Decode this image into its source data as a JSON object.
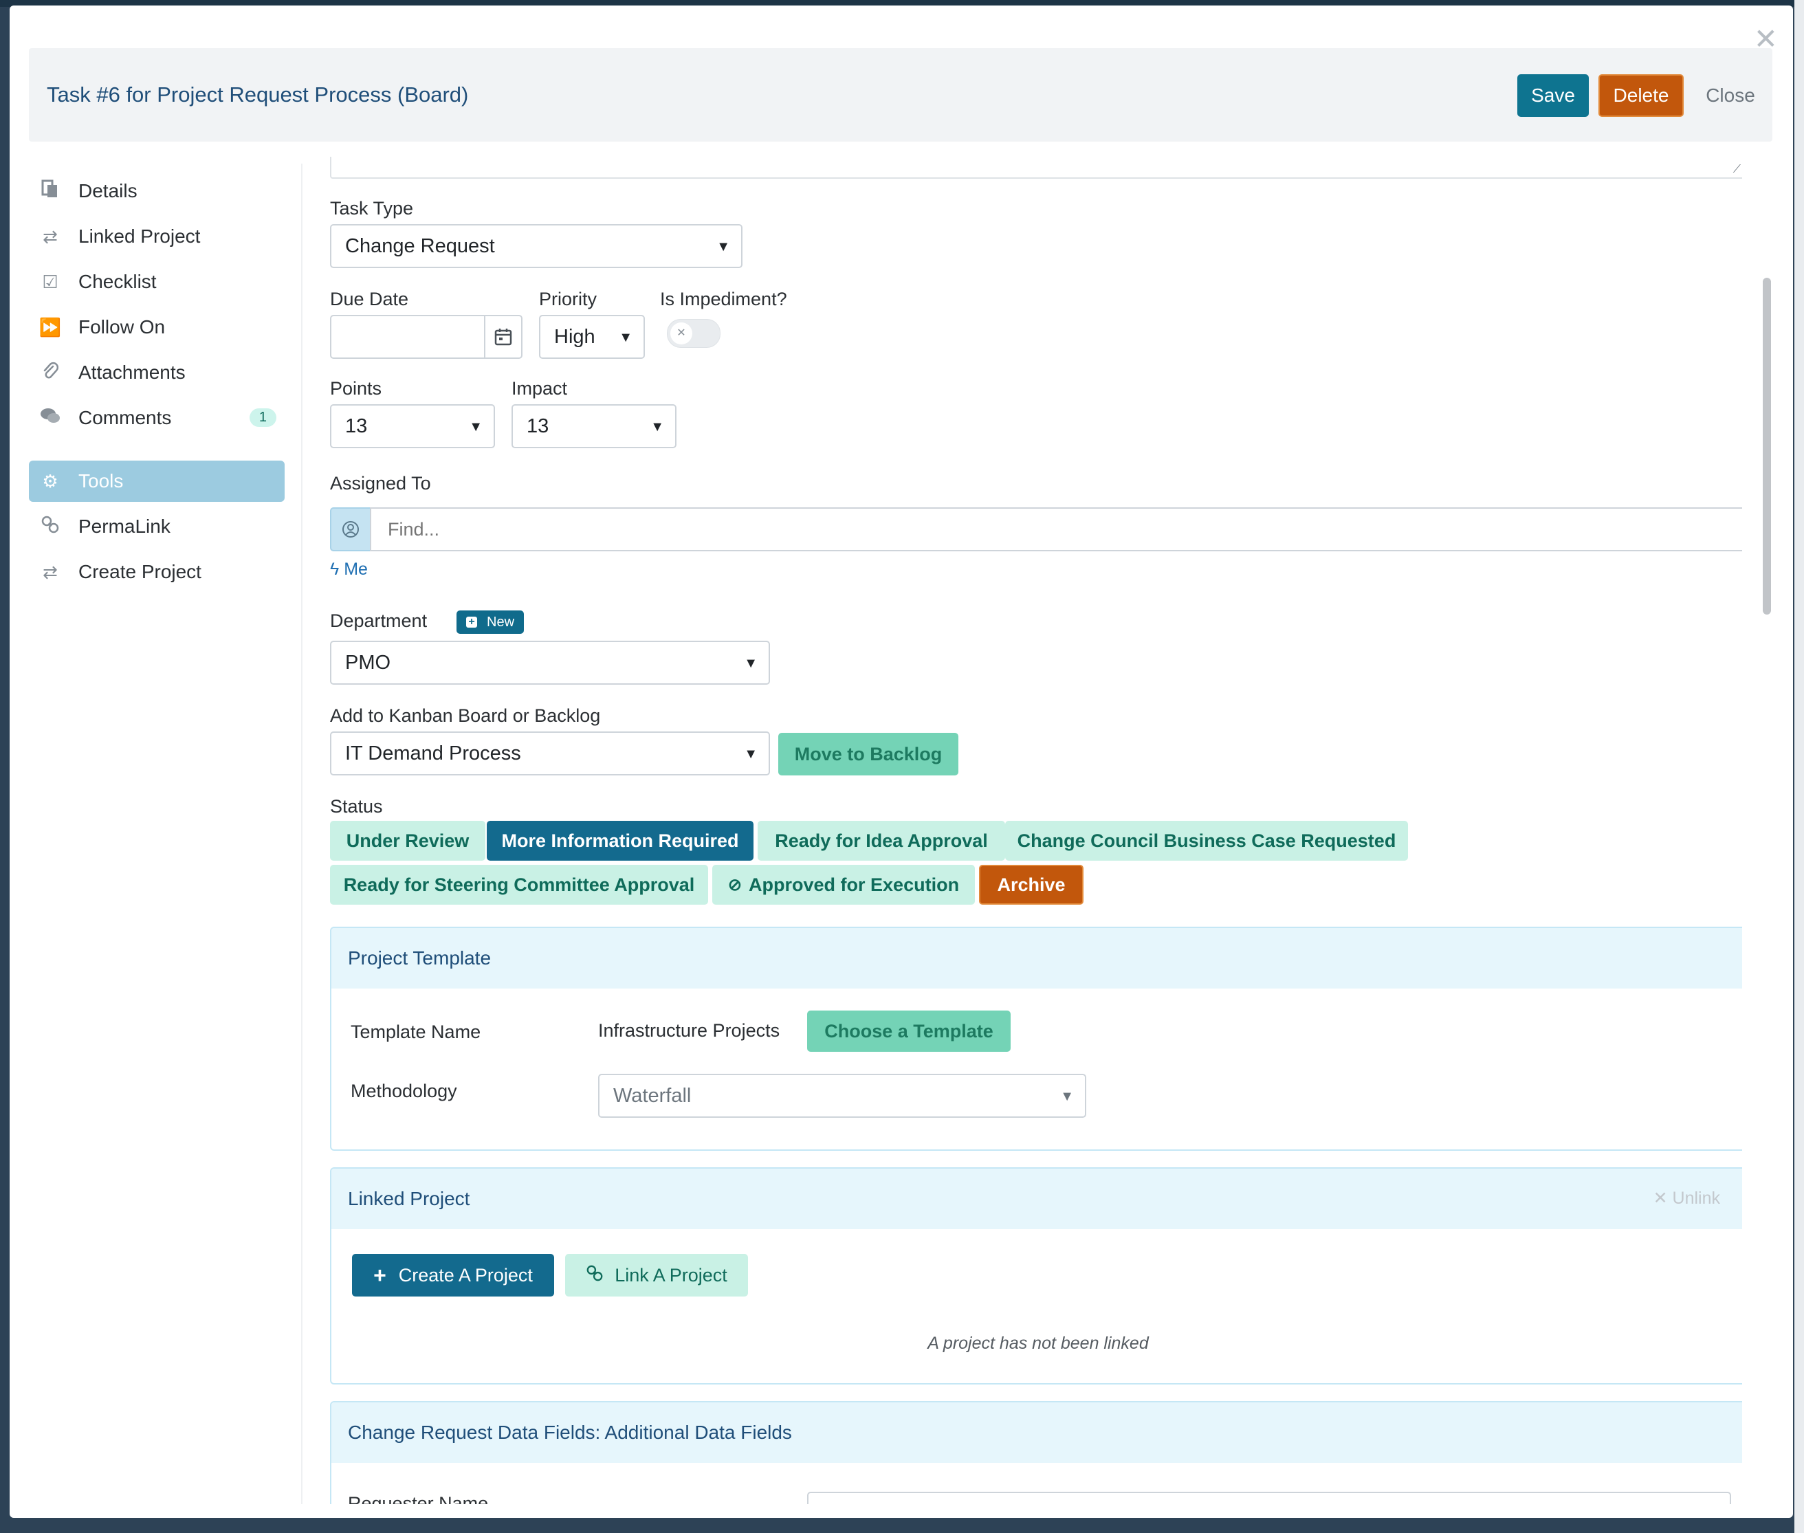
{
  "modal": {
    "title": "Task #6 for Project Request Process (Board)",
    "save_label": "Save",
    "delete_label": "Delete",
    "close_label": "Close"
  },
  "sidebar": {
    "items": [
      {
        "label": "Details",
        "icon": "document-icon"
      },
      {
        "label": "Linked Project",
        "icon": "swap-arrows-icon"
      },
      {
        "label": "Checklist",
        "icon": "checkbox-icon"
      },
      {
        "label": "Follow On",
        "icon": "fast-forward-icon"
      },
      {
        "label": "Attachments",
        "icon": "paperclip-icon"
      },
      {
        "label": "Comments",
        "icon": "comments-icon",
        "badge": "1"
      },
      {
        "label": "Tools",
        "icon": "gear-icon",
        "active": true
      },
      {
        "label": "PermaLink",
        "icon": "link-icon"
      },
      {
        "label": "Create Project",
        "icon": "swap-arrows-icon"
      }
    ]
  },
  "form": {
    "task_type": {
      "label": "Task Type",
      "value": "Change Request"
    },
    "due_date": {
      "label": "Due Date",
      "value": ""
    },
    "priority": {
      "label": "Priority",
      "value": "High"
    },
    "impediment": {
      "label": "Is Impediment?",
      "on": false
    },
    "points": {
      "label": "Points",
      "value": "13"
    },
    "impact": {
      "label": "Impact",
      "value": "13"
    },
    "assigned_to": {
      "label": "Assigned To",
      "placeholder": "Find...",
      "me_link": "Me"
    },
    "department": {
      "label": "Department",
      "new_badge": "New",
      "value": "PMO"
    },
    "board": {
      "label": "Add to Kanban Board or Backlog",
      "value": "IT Demand Process",
      "move_label": "Move to Backlog"
    },
    "status": {
      "label": "Status",
      "options": [
        "Under Review",
        "More Information Required",
        "Ready for Idea Approval",
        "Change Council Business Case Requested",
        "Ready for Steering Committee Approval",
        "Approved for Execution",
        "Archive"
      ],
      "selected": "More Information Required"
    }
  },
  "project_template": {
    "title": "Project Template",
    "template_name_label": "Template Name",
    "template_name_value": "Infrastructure Projects",
    "choose_label": "Choose a Template",
    "methodology_label": "Methodology",
    "methodology_value": "Waterfall"
  },
  "linked_project": {
    "title": "Linked Project",
    "unlink_label": "Unlink",
    "create_label": "Create A Project",
    "link_label": "Link A Project",
    "empty_text": "A project has not been linked"
  },
  "additional_fields": {
    "title": "Change Request Data Fields: Additional Data Fields",
    "first_field_label": "Requester Name"
  },
  "colors": {
    "primary": "#136a8e",
    "save": "#0e7490",
    "danger": "#c2570c",
    "success_light": "#c9f1e5",
    "success": "#74d3b6"
  }
}
